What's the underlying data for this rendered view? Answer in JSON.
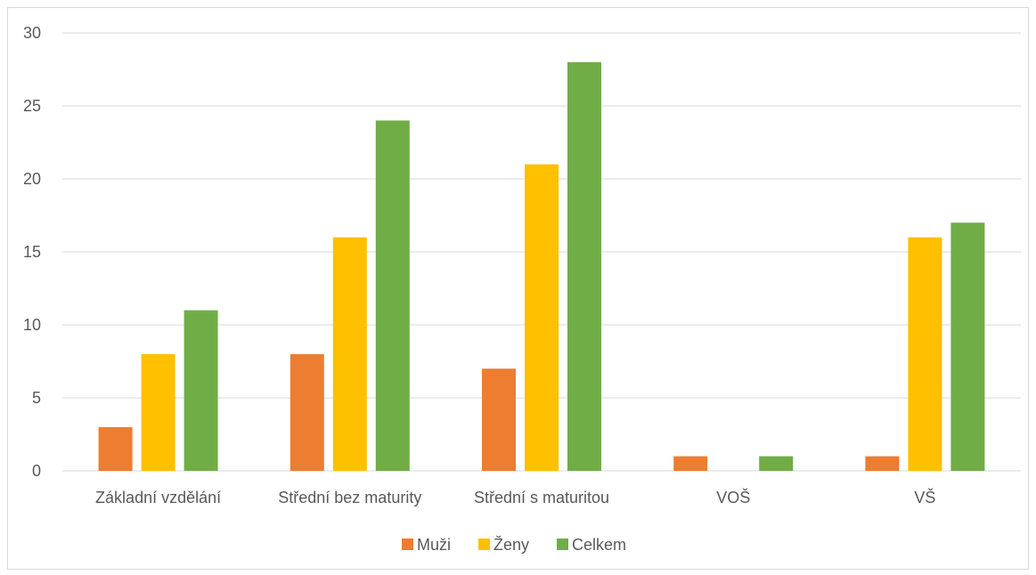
{
  "chart_data": {
    "type": "bar",
    "categories": [
      "Základní vzdělání",
      "Střední bez maturity",
      "Střední s maturitou",
      "VOŠ",
      "VŠ"
    ],
    "series": [
      {
        "name": "Muži",
        "color": "#ED7D31",
        "values": [
          3,
          8,
          7,
          1,
          1
        ]
      },
      {
        "name": "Ženy",
        "color": "#FFC000",
        "values": [
          8,
          16,
          21,
          0,
          16
        ]
      },
      {
        "name": "Celkem",
        "color": "#70AD47",
        "values": [
          11,
          24,
          28,
          1,
          17
        ]
      }
    ],
    "y_ticks": [
      "0",
      "5",
      "10",
      "15",
      "20",
      "25",
      "30"
    ],
    "ylim": [
      0,
      30
    ],
    "grid": true,
    "legend_position": "bottom"
  }
}
